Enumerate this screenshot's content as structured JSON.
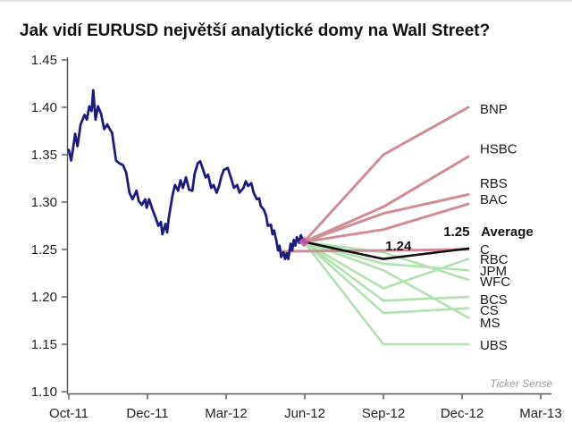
{
  "page": {
    "title": "Jak vidí EURUSD největší analytické domy na Wall Street?",
    "watermark": "Ticker Sense"
  },
  "chart_data": {
    "type": "line",
    "title": "Jak vidí EURUSD největší analytické domy na Wall Street?",
    "xlabel": "",
    "ylabel": "",
    "ylim": [
      1.1,
      1.45
    ],
    "y_ticks": [
      1.45,
      1.4,
      1.35,
      1.3,
      1.25,
      1.2,
      1.15,
      1.1
    ],
    "y_tick_labels": [
      "1.45",
      "1.40",
      "1.35",
      "1.30",
      "1.25",
      "1.20",
      "1.15",
      "1.10"
    ],
    "x_tick_labels": [
      "Oct-11",
      "Dec-11",
      "Mar-12",
      "Jun-12",
      "Sep-12",
      "Dec-12",
      "Mar-13"
    ],
    "grid": false,
    "legend_position": "right-edge-labels",
    "colors": {
      "history": "#1c1c80",
      "bullish": "#cf8d96",
      "bearish": "#b3e0b0",
      "average": "#111111",
      "axis": "#555555",
      "tick_text": "#333333",
      "label_text": "#1a1a1a",
      "watermark": "#9a9a9a",
      "marker": "#c457a3"
    },
    "history_series": {
      "name": "EURUSD",
      "points": [
        [
          0,
          1.355
        ],
        [
          0.03,
          1.344
        ],
        [
          0.06,
          1.36
        ],
        [
          0.08,
          1.372
        ],
        [
          0.11,
          1.359
        ],
        [
          0.15,
          1.382
        ],
        [
          0.2,
          1.392
        ],
        [
          0.23,
          1.387
        ],
        [
          0.26,
          1.401
        ],
        [
          0.29,
          1.396
        ],
        [
          0.31,
          1.418
        ],
        [
          0.34,
          1.387
        ],
        [
          0.37,
          1.401
        ],
        [
          0.41,
          1.393
        ],
        [
          0.45,
          1.377
        ],
        [
          0.49,
          1.382
        ],
        [
          0.52,
          1.377
        ],
        [
          0.55,
          1.373
        ],
        [
          0.6,
          1.344
        ],
        [
          0.64,
          1.341
        ],
        [
          0.69,
          1.339
        ],
        [
          0.73,
          1.331
        ],
        [
          0.77,
          1.31
        ],
        [
          0.81,
          1.303
        ],
        [
          0.86,
          1.312
        ],
        [
          0.89,
          1.301
        ],
        [
          0.93,
          1.297
        ],
        [
          0.97,
          1.303
        ],
        [
          0.99,
          1.294
        ],
        [
          1.02,
          1.303
        ],
        [
          1.06,
          1.293
        ],
        [
          1.11,
          1.282
        ],
        [
          1.14,
          1.275
        ],
        [
          1.17,
          1.279
        ],
        [
          1.19,
          1.266
        ],
        [
          1.23,
          1.277
        ],
        [
          1.25,
          1.268
        ],
        [
          1.27,
          1.283
        ],
        [
          1.3,
          1.298
        ],
        [
          1.32,
          1.308
        ],
        [
          1.35,
          1.318
        ],
        [
          1.39,
          1.312
        ],
        [
          1.42,
          1.323
        ],
        [
          1.45,
          1.315
        ],
        [
          1.49,
          1.326
        ],
        [
          1.53,
          1.313
        ],
        [
          1.57,
          1.312
        ],
        [
          1.6,
          1.33
        ],
        [
          1.64,
          1.341
        ],
        [
          1.67,
          1.343
        ],
        [
          1.7,
          1.336
        ],
        [
          1.74,
          1.326
        ],
        [
          1.77,
          1.329
        ],
        [
          1.81,
          1.315
        ],
        [
          1.84,
          1.318
        ],
        [
          1.88,
          1.31
        ],
        [
          1.91,
          1.317
        ],
        [
          1.94,
          1.327
        ],
        [
          1.97,
          1.334
        ],
        [
          2.02,
          1.336
        ],
        [
          2.06,
          1.326
        ],
        [
          2.1,
          1.315
        ],
        [
          2.14,
          1.318
        ],
        [
          2.17,
          1.31
        ],
        [
          2.22,
          1.315
        ],
        [
          2.25,
          1.322
        ],
        [
          2.28,
          1.317
        ],
        [
          2.32,
          1.32
        ],
        [
          2.35,
          1.31
        ],
        [
          2.39,
          1.303
        ],
        [
          2.42,
          1.304
        ],
        [
          2.44,
          1.296
        ],
        [
          2.48,
          1.292
        ],
        [
          2.51,
          1.285
        ],
        [
          2.53,
          1.275
        ],
        [
          2.57,
          1.276
        ],
        [
          2.59,
          1.266
        ],
        [
          2.61,
          1.27
        ],
        [
          2.64,
          1.259
        ],
        [
          2.66,
          1.249
        ],
        [
          2.68,
          1.254
        ],
        [
          2.7,
          1.242
        ],
        [
          2.73,
          1.247
        ],
        [
          2.75,
          1.24
        ],
        [
          2.77,
          1.246
        ],
        [
          2.79,
          1.24
        ],
        [
          2.82,
          1.256
        ],
        [
          2.84,
          1.249
        ],
        [
          2.86,
          1.26
        ],
        [
          2.88,
          1.254
        ],
        [
          2.9,
          1.263
        ],
        [
          2.93,
          1.257
        ],
        [
          2.95,
          1.265
        ],
        [
          2.99,
          1.258
        ]
      ]
    },
    "forecast_series": [
      {
        "name": "BNP",
        "group": "bullish",
        "points": [
          [
            2.99,
            1.258
          ],
          [
            4,
            1.35
          ],
          [
            5.08,
            1.4
          ]
        ],
        "label_v": 1.398
      },
      {
        "name": "HSBC",
        "group": "bullish",
        "points": [
          [
            2.99,
            1.258
          ],
          [
            4,
            1.295
          ],
          [
            5.08,
            1.348
          ]
        ],
        "label_v": 1.356
      },
      {
        "name": "RBS",
        "group": "bullish",
        "points": [
          [
            2.99,
            1.258
          ],
          [
            4,
            1.288
          ],
          [
            5.08,
            1.308
          ]
        ],
        "label_v": 1.32
      },
      {
        "name": "BAC",
        "group": "bullish",
        "points": [
          [
            2.99,
            1.258
          ],
          [
            4,
            1.271
          ],
          [
            5.08,
            1.298
          ]
        ],
        "label_v": 1.303
      },
      {
        "name": "C",
        "group": "bullish",
        "points": [
          [
            2.7,
            1.248
          ],
          [
            4,
            1.249
          ],
          [
            5.08,
            1.25
          ]
        ],
        "label_v": 1.25
      },
      {
        "name": "RBC",
        "group": "bearish",
        "points": [
          [
            2.99,
            1.258
          ],
          [
            4,
            1.209
          ],
          [
            5.08,
            1.24
          ]
        ],
        "label_v": 1.2396
      },
      {
        "name": "JPM",
        "group": "bearish",
        "points": [
          [
            2.99,
            1.258
          ],
          [
            4,
            1.235
          ],
          [
            5.08,
            1.228
          ]
        ],
        "label_v": 1.2274
      },
      {
        "name": "WFC",
        "group": "bearish",
        "points": [
          [
            2.99,
            1.258
          ],
          [
            4,
            1.247
          ],
          [
            5.08,
            1.218
          ]
        ],
        "label_v": 1.216
      },
      {
        "name": "BCS",
        "group": "bearish",
        "points": [
          [
            2.99,
            1.258
          ],
          [
            4,
            1.196
          ],
          [
            5.08,
            1.2
          ]
        ],
        "label_v": 1.1972
      },
      {
        "name": "CS",
        "group": "bearish",
        "points": [
          [
            2.99,
            1.258
          ],
          [
            4,
            1.183
          ],
          [
            5.08,
            1.188
          ]
        ],
        "label_v": 1.1858
      },
      {
        "name": "MS",
        "group": "bearish",
        "points": [
          [
            2.99,
            1.258
          ],
          [
            4,
            1.228
          ],
          [
            5.08,
            1.178
          ]
        ],
        "label_v": 1.1726
      },
      {
        "name": "UBS",
        "group": "bearish",
        "points": [
          [
            2.99,
            1.258
          ],
          [
            4,
            1.15
          ],
          [
            5.08,
            1.15
          ]
        ],
        "label_v": 1.149
      }
    ],
    "average_series": {
      "name": "Average",
      "points": [
        [
          2.99,
          1.258
        ],
        [
          4,
          1.24
        ],
        [
          5.08,
          1.251
        ]
      ]
    },
    "annotations": [
      {
        "text": "1.24",
        "t": 4.19,
        "v": 1.2538,
        "anchor": "middle",
        "bold": true,
        "size": 15,
        "color": "#111111"
      },
      {
        "text": "1.25",
        "t": 4.93,
        "v": 1.2689,
        "anchor": "middle",
        "bold": true,
        "size": 15,
        "color": "#111111"
      },
      {
        "text": "Average",
        "t": 5.24,
        "v": 1.2689,
        "anchor": "start",
        "bold": true,
        "size": 15,
        "color": "#111111"
      },
      {
        "text": "Ticker Sense",
        "t": 6.15,
        "v": 1.1094,
        "anchor": "end",
        "bold": false,
        "size": 12,
        "color": "#9a9a9a",
        "italic": true
      }
    ],
    "origin_marker": {
      "t": 2.99,
      "v": 1.258
    }
  }
}
